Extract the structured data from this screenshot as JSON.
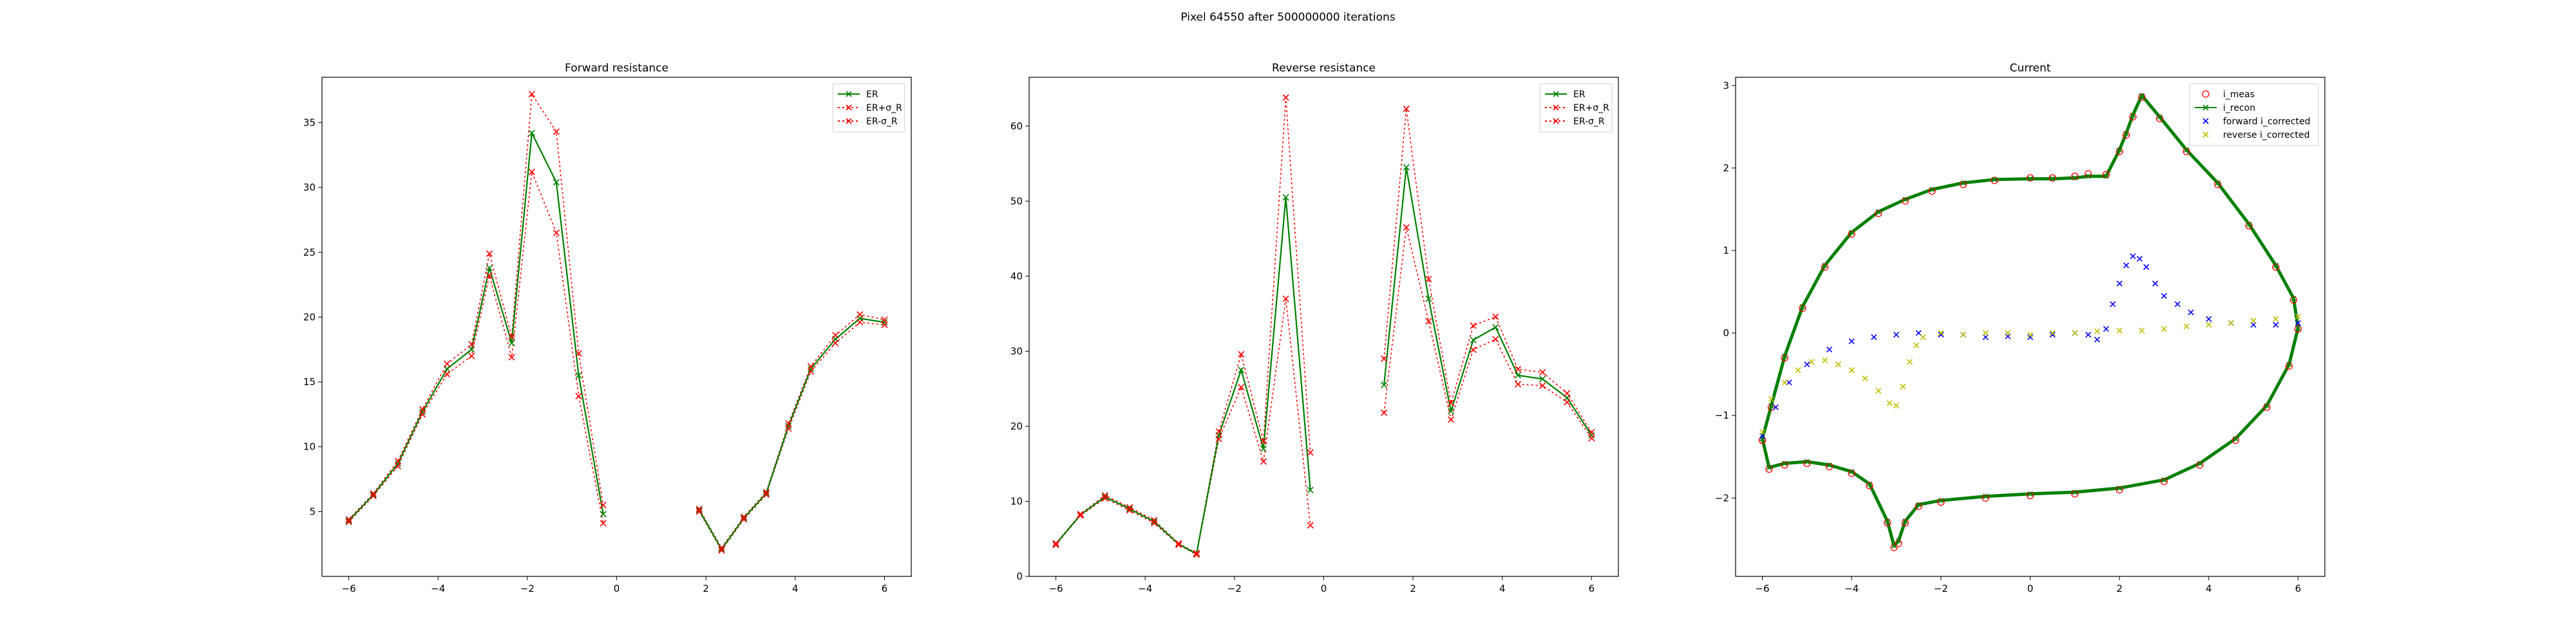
{
  "figure_title": "Pixel 64550 after 500000000 iterations",
  "colors": {
    "er": "#008000",
    "er_bounds": "#ff0000",
    "i_meas": "#ff0000",
    "i_recon": "#008000",
    "forward_corrected": "#0000ff",
    "reverse_corrected": "#bfbf00"
  },
  "chart_data": [
    {
      "type": "line",
      "title": "Forward resistance",
      "xlabel": "",
      "ylabel": "",
      "xlim": [
        -6.6,
        6.6
      ],
      "ylim": [
        0,
        38.5
      ],
      "xticks": [
        -6,
        -4,
        -2,
        0,
        2,
        4,
        6
      ],
      "yticks": [
        5,
        10,
        15,
        20,
        25,
        30,
        35
      ],
      "legend_position": "top-right",
      "series": [
        {
          "name": "ER",
          "x": [
            -6.0,
            -5.45,
            -4.9,
            -4.35,
            -3.8,
            -3.25,
            -2.85,
            -2.35,
            -1.9,
            -1.35,
            -0.85,
            -0.3,
            null,
            1.85,
            2.35,
            2.85,
            3.35,
            3.85,
            4.35,
            4.9,
            5.45,
            6.0
          ],
          "y": [
            4.3,
            6.3,
            8.7,
            12.7,
            16.0,
            17.5,
            23.8,
            18.0,
            34.2,
            30.4,
            15.5,
            4.8,
            null,
            5.1,
            2.1,
            4.5,
            6.4,
            11.6,
            16.0,
            18.3,
            19.9,
            19.6
          ]
        },
        {
          "name": "ER+σ_R",
          "x": [
            -6.0,
            -5.45,
            -4.9,
            -4.35,
            -3.8,
            -3.25,
            -2.85,
            -2.35,
            -1.9,
            -1.35,
            -0.85,
            -0.3,
            null,
            1.85,
            2.35,
            2.85,
            3.35,
            3.85,
            4.35,
            4.9,
            5.45,
            6.0
          ],
          "y": [
            4.4,
            6.4,
            8.9,
            12.9,
            16.4,
            17.9,
            24.9,
            18.5,
            37.2,
            34.3,
            17.2,
            5.5,
            null,
            5.2,
            2.2,
            4.6,
            6.5,
            11.8,
            16.2,
            18.6,
            20.2,
            19.8
          ]
        },
        {
          "name": "ER-σ_R",
          "x": [
            -6.0,
            -5.45,
            -4.9,
            -4.35,
            -3.8,
            -3.25,
            -2.85,
            -2.35,
            -1.9,
            -1.35,
            -0.85,
            -0.3,
            null,
            1.85,
            2.35,
            2.85,
            3.35,
            3.85,
            4.35,
            4.9,
            5.45,
            6.0
          ],
          "y": [
            4.2,
            6.2,
            8.5,
            12.5,
            15.6,
            17.0,
            23.2,
            16.9,
            31.2,
            26.5,
            13.9,
            4.1,
            null,
            5.0,
            2.0,
            4.4,
            6.3,
            11.4,
            15.8,
            18.0,
            19.6,
            19.4
          ]
        }
      ]
    },
    {
      "type": "line",
      "title": "Reverse resistance",
      "xlabel": "",
      "ylabel": "",
      "xlim": [
        -6.6,
        6.6
      ],
      "ylim": [
        0,
        66.5
      ],
      "xticks": [
        -6,
        -4,
        -2,
        0,
        2,
        4,
        6
      ],
      "yticks": [
        0,
        10,
        20,
        30,
        40,
        50,
        60
      ],
      "legend_position": "top-right",
      "series": [
        {
          "name": "ER",
          "x": [
            -6.0,
            -5.45,
            -4.9,
            -4.35,
            -3.8,
            -3.25,
            -2.85,
            -2.35,
            -1.85,
            -1.35,
            -0.85,
            -0.3,
            null,
            1.35,
            1.85,
            2.35,
            2.85,
            3.35,
            3.85,
            4.35,
            4.9,
            5.45,
            6.0
          ],
          "y": [
            4.3,
            8.2,
            10.6,
            9.0,
            7.3,
            4.3,
            3.0,
            18.8,
            27.5,
            17.0,
            50.5,
            11.5,
            null,
            25.5,
            54.5,
            37.0,
            22.0,
            31.5,
            33.2,
            26.8,
            26.3,
            23.8,
            18.8
          ]
        },
        {
          "name": "ER+σ_R",
          "x": [
            -6.0,
            -5.45,
            -4.9,
            -4.35,
            -3.8,
            -3.25,
            -2.85,
            -2.35,
            -1.85,
            -1.35,
            -0.85,
            -0.3,
            null,
            1.35,
            1.85,
            2.35,
            2.85,
            3.35,
            3.85,
            4.35,
            4.9,
            5.45,
            6.0
          ],
          "y": [
            4.4,
            8.3,
            10.8,
            9.2,
            7.5,
            4.4,
            3.1,
            19.3,
            29.6,
            18.0,
            63.8,
            16.5,
            null,
            29.0,
            62.3,
            39.6,
            23.1,
            33.4,
            34.6,
            27.6,
            27.2,
            24.4,
            19.2
          ]
        },
        {
          "name": "ER-σ_R",
          "x": [
            -6.0,
            -5.45,
            -4.9,
            -4.35,
            -3.8,
            -3.25,
            -2.85,
            -2.35,
            -1.85,
            -1.35,
            -0.85,
            -0.3,
            null,
            1.35,
            1.85,
            2.35,
            2.85,
            3.35,
            3.85,
            4.35,
            4.9,
            5.45,
            6.0
          ],
          "y": [
            4.2,
            8.1,
            10.4,
            8.8,
            7.1,
            4.2,
            2.9,
            18.3,
            25.2,
            15.3,
            37.0,
            6.8,
            null,
            21.8,
            46.5,
            34.0,
            20.9,
            30.2,
            31.6,
            25.6,
            25.4,
            23.2,
            18.4
          ]
        }
      ]
    },
    {
      "type": "scatter",
      "title": "Current",
      "xlabel": "",
      "ylabel": "",
      "xlim": [
        -6.6,
        6.6
      ],
      "ylim": [
        -2.95,
        3.1
      ],
      "xticks": [
        -6,
        -4,
        -2,
        0,
        2,
        4,
        6
      ],
      "yticks": [
        -2,
        -1,
        0,
        1,
        2,
        3
      ],
      "legend_position": "top-right",
      "series": [
        {
          "name": "i_meas",
          "marker": "open-circle",
          "x": [
            -6.0,
            -5.8,
            -5.5,
            -5.1,
            -4.6,
            -4.0,
            -3.4,
            -2.8,
            -2.2,
            -1.5,
            -0.8,
            0.0,
            0.5,
            1.0,
            1.3,
            1.7,
            2.0,
            2.15,
            2.3,
            2.5,
            2.9,
            3.5,
            4.2,
            4.9,
            5.5,
            5.9,
            6.0,
            5.8,
            5.3,
            4.6,
            3.8,
            3.0,
            2.0,
            1.0,
            0.0,
            -1.0,
            -2.0,
            -2.5,
            -2.8,
            -2.95,
            -3.05,
            -3.2,
            -3.6,
            -4.0,
            -4.5,
            -5.0,
            -5.5,
            -5.85,
            -6.0
          ],
          "y": [
            -1.3,
            -0.9,
            -0.3,
            0.3,
            0.8,
            1.2,
            1.45,
            1.6,
            1.72,
            1.8,
            1.85,
            1.88,
            1.88,
            1.9,
            1.93,
            1.92,
            2.2,
            2.4,
            2.62,
            2.86,
            2.6,
            2.2,
            1.8,
            1.3,
            0.8,
            0.4,
            0.05,
            -0.4,
            -0.9,
            -1.3,
            -1.6,
            -1.8,
            -1.9,
            -1.95,
            -1.97,
            -2.0,
            -2.05,
            -2.1,
            -2.3,
            -2.55,
            -2.6,
            -2.3,
            -1.85,
            -1.7,
            -1.62,
            -1.58,
            -1.6,
            -1.65,
            -1.3
          ]
        },
        {
          "name": "i_recon",
          "marker": "x-line",
          "x": [
            -6.0,
            -5.8,
            -5.5,
            -5.1,
            -4.6,
            -4.0,
            -3.4,
            -2.8,
            -2.2,
            -1.5,
            -0.8,
            0.0,
            0.5,
            1.0,
            1.3,
            1.7,
            2.0,
            2.15,
            2.3,
            2.5,
            2.9,
            3.5,
            4.2,
            4.9,
            5.5,
            5.9,
            6.0,
            5.8,
            5.3,
            4.6,
            3.8,
            3.0,
            2.0,
            1.0,
            0.0,
            -1.0,
            -2.0,
            -2.5,
            -2.8,
            -2.95,
            -3.05,
            -3.2,
            -3.6,
            -4.0,
            -4.5,
            -5.0,
            -5.5,
            -5.85,
            -6.0
          ],
          "y": [
            -1.28,
            -0.88,
            -0.28,
            0.32,
            0.82,
            1.22,
            1.47,
            1.62,
            1.74,
            1.82,
            1.86,
            1.87,
            1.87,
            1.88,
            1.9,
            1.9,
            2.22,
            2.42,
            2.64,
            2.88,
            2.62,
            2.22,
            1.82,
            1.32,
            0.82,
            0.42,
            0.06,
            -0.38,
            -0.88,
            -1.28,
            -1.58,
            -1.78,
            -1.88,
            -1.93,
            -1.95,
            -1.98,
            -2.03,
            -2.08,
            -2.28,
            -2.52,
            -2.58,
            -2.28,
            -1.83,
            -1.68,
            -1.6,
            -1.56,
            -1.58,
            -1.63,
            -1.28
          ]
        },
        {
          "name": "forward i_corrected",
          "marker": "x",
          "x": [
            -6.0,
            -5.7,
            -5.4,
            -5.0,
            -4.5,
            -4.0,
            -3.5,
            -3.0,
            -2.5,
            -2.0,
            -1.5,
            -1.0,
            -0.5,
            0.0,
            0.5,
            1.0,
            1.3,
            1.5,
            1.7,
            1.85,
            2.0,
            2.15,
            2.3,
            2.45,
            2.6,
            2.8,
            3.0,
            3.3,
            3.6,
            4.0,
            4.5,
            5.0,
            5.5,
            6.0
          ],
          "y": [
            -1.25,
            -0.9,
            -0.6,
            -0.38,
            -0.2,
            -0.1,
            -0.05,
            -0.02,
            0.0,
            -0.02,
            -0.02,
            -0.05,
            -0.04,
            -0.05,
            -0.02,
            0.0,
            -0.02,
            -0.08,
            0.05,
            0.35,
            0.6,
            0.82,
            0.93,
            0.9,
            0.8,
            0.6,
            0.45,
            0.35,
            0.25,
            0.17,
            0.12,
            0.1,
            0.1,
            0.12
          ]
        },
        {
          "name": "reverse i_corrected",
          "marker": "x",
          "x": [
            -6.0,
            -5.8,
            -5.5,
            -5.2,
            -4.9,
            -4.6,
            -4.3,
            -4.0,
            -3.7,
            -3.4,
            -3.15,
            -3.0,
            -2.85,
            -2.7,
            -2.55,
            -2.4,
            -2.0,
            -1.5,
            -1.0,
            -0.5,
            0.0,
            0.5,
            1.0,
            1.5,
            2.0,
            2.5,
            3.0,
            3.5,
            4.0,
            4.5,
            5.0,
            5.5,
            6.0
          ],
          "y": [
            -1.2,
            -0.8,
            -0.6,
            -0.45,
            -0.35,
            -0.33,
            -0.38,
            -0.45,
            -0.55,
            -0.7,
            -0.85,
            -0.88,
            -0.65,
            -0.35,
            -0.15,
            -0.05,
            0.0,
            -0.02,
            0.0,
            0.0,
            -0.02,
            0.0,
            0.0,
            0.02,
            0.03,
            0.03,
            0.05,
            0.08,
            0.1,
            0.12,
            0.15,
            0.17,
            0.2
          ]
        }
      ]
    }
  ]
}
